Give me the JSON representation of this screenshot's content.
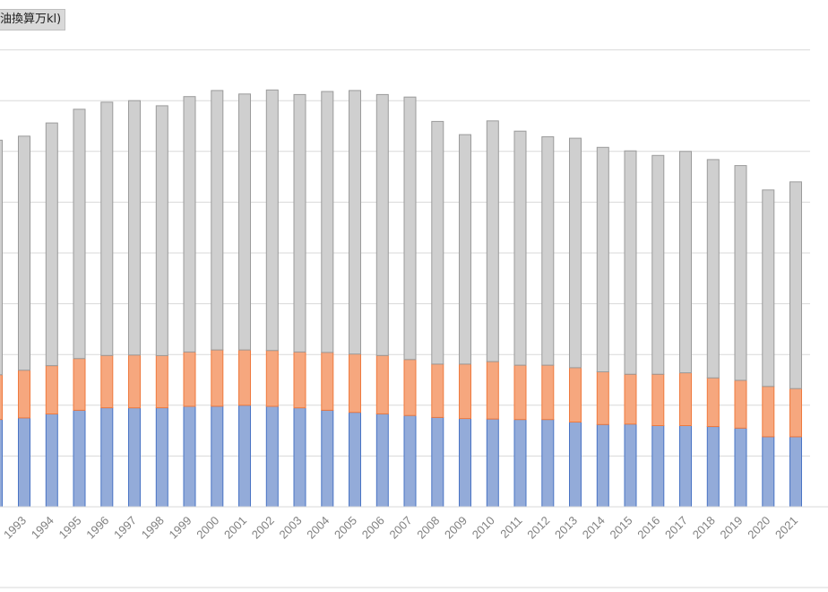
{
  "unit_label": "油換算万kl)",
  "colors": {
    "gray": "#cfcfcf",
    "gray_stroke": "#9b9b9b",
    "orange": "#f6a77e",
    "orange_stroke": "#ee7a3f",
    "blue": "#93abd9",
    "blue_stroke": "#4a74c4",
    "grid": "#d9d9d9",
    "tick": "#808080"
  },
  "chart_data": {
    "type": "bar",
    "stacked": true,
    "grid": true,
    "legend": "none",
    "ylim": [
      0,
      9
    ],
    "y_gridlines": [
      1,
      2,
      3,
      4,
      5,
      6,
      7,
      8,
      9
    ],
    "categories": [
      "1993",
      "1994",
      "1995",
      "1996",
      "1997",
      "1998",
      "1999",
      "2000",
      "2001",
      "2002",
      "2003",
      "2004",
      "2005",
      "2006",
      "2007",
      "2008",
      "2009",
      "2010",
      "2011",
      "2012",
      "2013",
      "2014",
      "2015",
      "2016",
      "2017",
      "2018",
      "2019",
      "2020",
      "2021"
    ],
    "partial_first_bar": {
      "values": [
        1.72,
        0.88,
        4.62
      ],
      "total": 7.22
    },
    "series": [
      {
        "color_key": "blue",
        "values": [
          1.75,
          1.83,
          1.9,
          1.95,
          1.95,
          1.95,
          1.98,
          1.98,
          2.0,
          1.98,
          1.95,
          1.9,
          1.86,
          1.83,
          1.8,
          1.76,
          1.74,
          1.73,
          1.72,
          1.72,
          1.67,
          1.62,
          1.63,
          1.6,
          1.6,
          1.58,
          1.55,
          1.38,
          1.38
        ]
      },
      {
        "color_key": "orange",
        "values": [
          0.94,
          0.95,
          1.02,
          1.03,
          1.04,
          1.03,
          1.07,
          1.11,
          1.09,
          1.1,
          1.1,
          1.14,
          1.15,
          1.15,
          1.1,
          1.05,
          1.07,
          1.13,
          1.07,
          1.07,
          1.07,
          1.04,
          0.98,
          1.01,
          1.04,
          0.96,
          0.94,
          0.99,
          0.95
        ]
      },
      {
        "color_key": "gray",
        "values": [
          4.61,
          4.78,
          4.91,
          4.99,
          5.01,
          4.92,
          5.03,
          5.11,
          5.04,
          5.13,
          5.07,
          5.14,
          5.19,
          5.14,
          5.17,
          4.78,
          4.52,
          4.74,
          4.61,
          4.5,
          4.52,
          4.42,
          4.4,
          4.31,
          4.36,
          4.3,
          4.23,
          3.87,
          4.07
        ]
      }
    ]
  }
}
